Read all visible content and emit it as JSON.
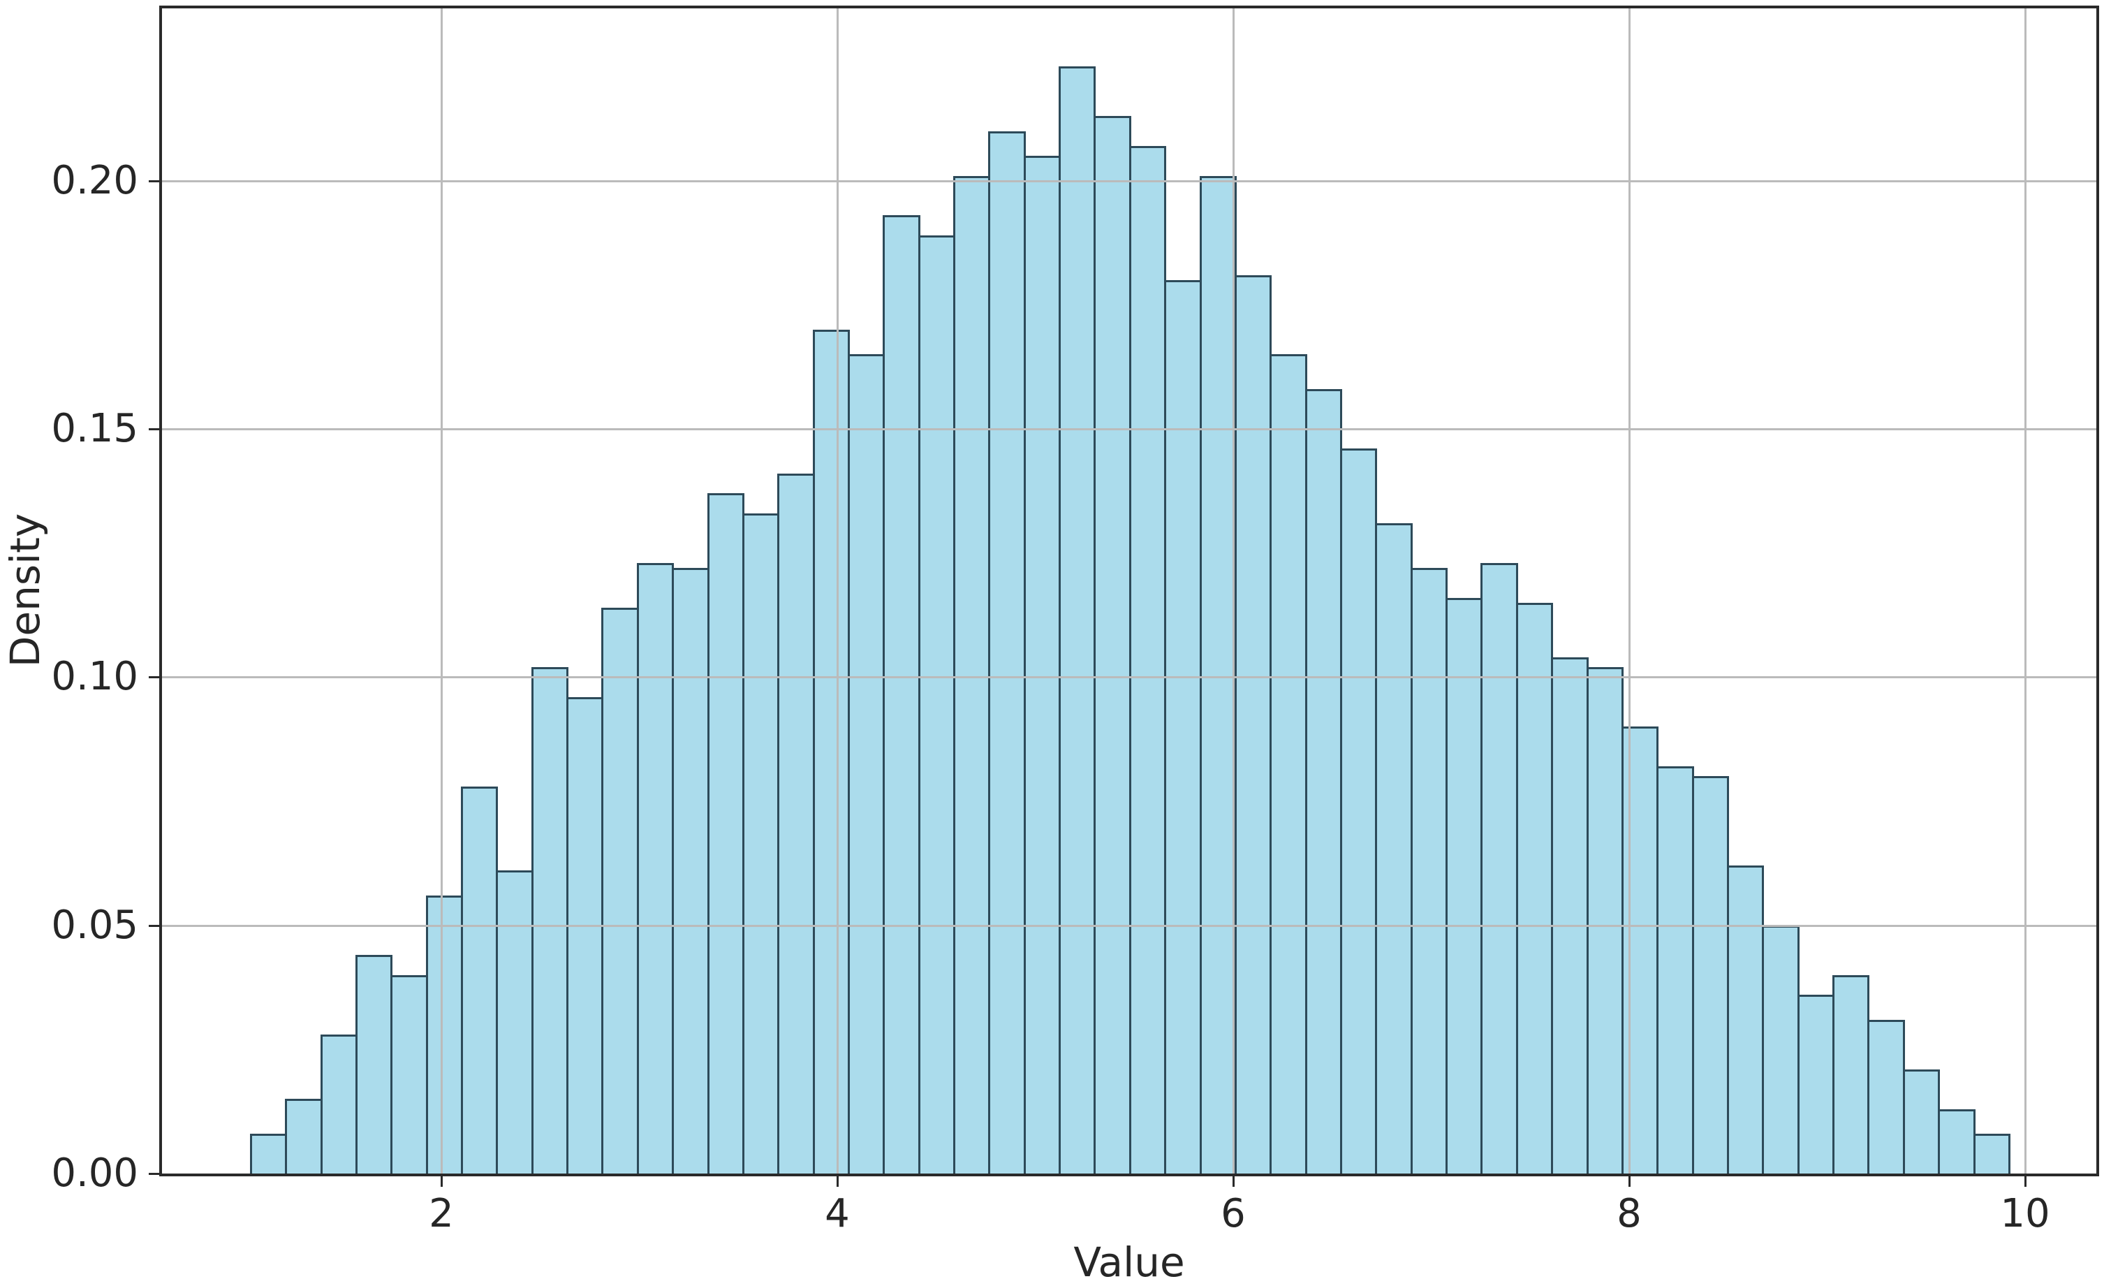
{
  "chart_data": {
    "type": "histogram",
    "title": "",
    "xlabel": "Value",
    "ylabel": "Density",
    "bins": {
      "start": 1.031,
      "width": 0.1777,
      "count": 50
    },
    "densities": [
      0.008,
      0.015,
      0.028,
      0.044,
      0.04,
      0.056,
      0.078,
      0.061,
      0.102,
      0.096,
      0.114,
      0.123,
      0.122,
      0.137,
      0.133,
      0.141,
      0.17,
      0.165,
      0.193,
      0.189,
      0.201,
      0.21,
      0.205,
      0.223,
      0.213,
      0.207,
      0.18,
      0.201,
      0.181,
      0.165,
      0.158,
      0.146,
      0.131,
      0.122,
      0.116,
      0.123,
      0.115,
      0.104,
      0.102,
      0.09,
      0.082,
      0.08,
      0.062,
      0.05,
      0.036,
      0.04,
      0.031,
      0.021,
      0.013,
      0.008
    ],
    "xlim": [
      0.587,
      10.361
    ],
    "ylim": [
      0,
      0.2347
    ],
    "xticks": [
      {
        "value": 2,
        "label": "2"
      },
      {
        "value": 4,
        "label": "4"
      },
      {
        "value": 6,
        "label": "6"
      },
      {
        "value": 8,
        "label": "8"
      },
      {
        "value": 10,
        "label": "10"
      }
    ],
    "yticks": [
      {
        "value": 0.0,
        "label": "0.00"
      },
      {
        "value": 0.05,
        "label": "0.05"
      },
      {
        "value": 0.1,
        "label": "0.10"
      },
      {
        "value": 0.15,
        "label": "0.15"
      },
      {
        "value": 0.2,
        "label": "0.20"
      }
    ],
    "grid": true,
    "legend": false,
    "colors": {
      "bar_fill": "#abdcec",
      "bar_edge": "#2d4a59",
      "grid": "#bbbbbb",
      "spine": "#2a2a2a",
      "text": "#262626",
      "background": "#ffffff"
    }
  }
}
